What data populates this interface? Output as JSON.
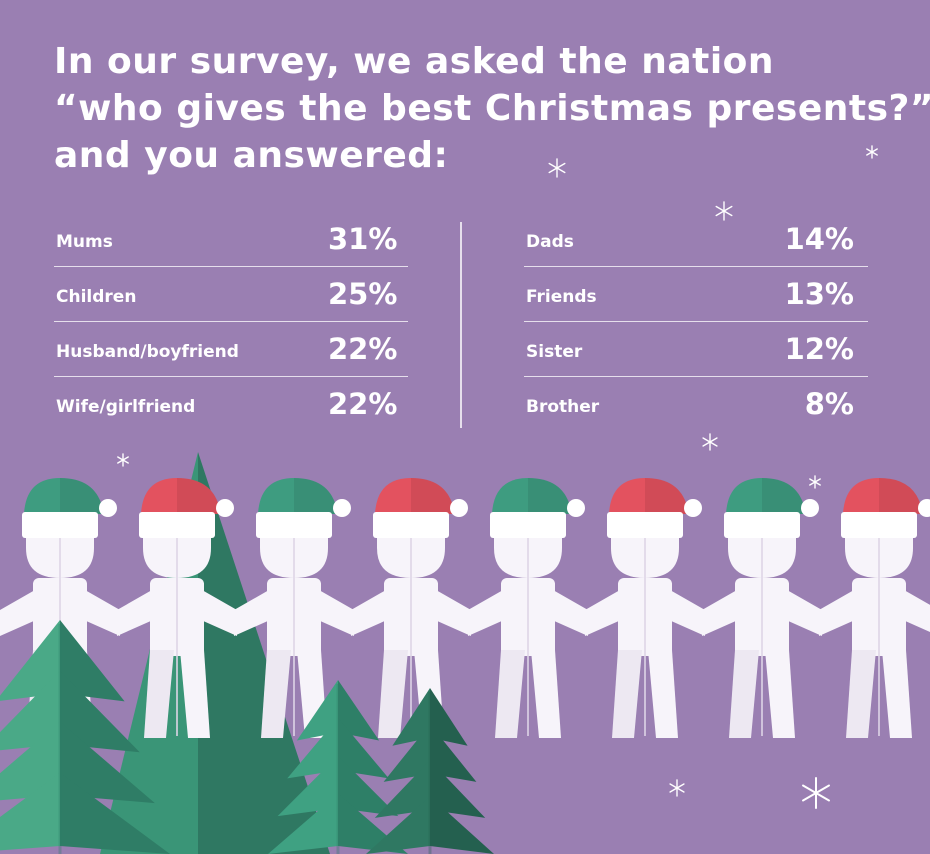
{
  "title": {
    "lines": [
      "In our survey, we asked the nation",
      "“who gives the best Christmas presents?”",
      "and you answered:"
    ]
  },
  "chart_data": {
    "type": "table",
    "unit": "%",
    "columns": [
      {
        "categories": [
          "Mums",
          "Children",
          "Husband/boyfriend",
          "Wife/girlfriend"
        ],
        "values": [
          31,
          25,
          22,
          22
        ],
        "labels": [
          "31%",
          "25%",
          "22%",
          "22%"
        ]
      },
      {
        "categories": [
          "Dads",
          "Friends",
          "Sister",
          "Brother"
        ],
        "values": [
          14,
          13,
          12,
          8
        ],
        "labels": [
          "14%",
          "13%",
          "12%",
          "8%"
        ]
      }
    ]
  },
  "colors": {
    "background": "#9a7fb2",
    "text": "#ffffff",
    "hat_green": "#3e9c80",
    "hat_red": "#e3525f",
    "tree_green": "#3f9d7f",
    "tree_green_dark": "#2d6f5b",
    "paper_white": "#f7f4fa"
  },
  "decor": {
    "figure_count": 8,
    "hat_pattern": [
      "green",
      "red",
      "green",
      "red",
      "green",
      "red",
      "green",
      "red"
    ],
    "icons": [
      "snowflake-icon",
      "christmas-tree-icon",
      "santa-hat-icon",
      "paper-person-icon"
    ]
  }
}
